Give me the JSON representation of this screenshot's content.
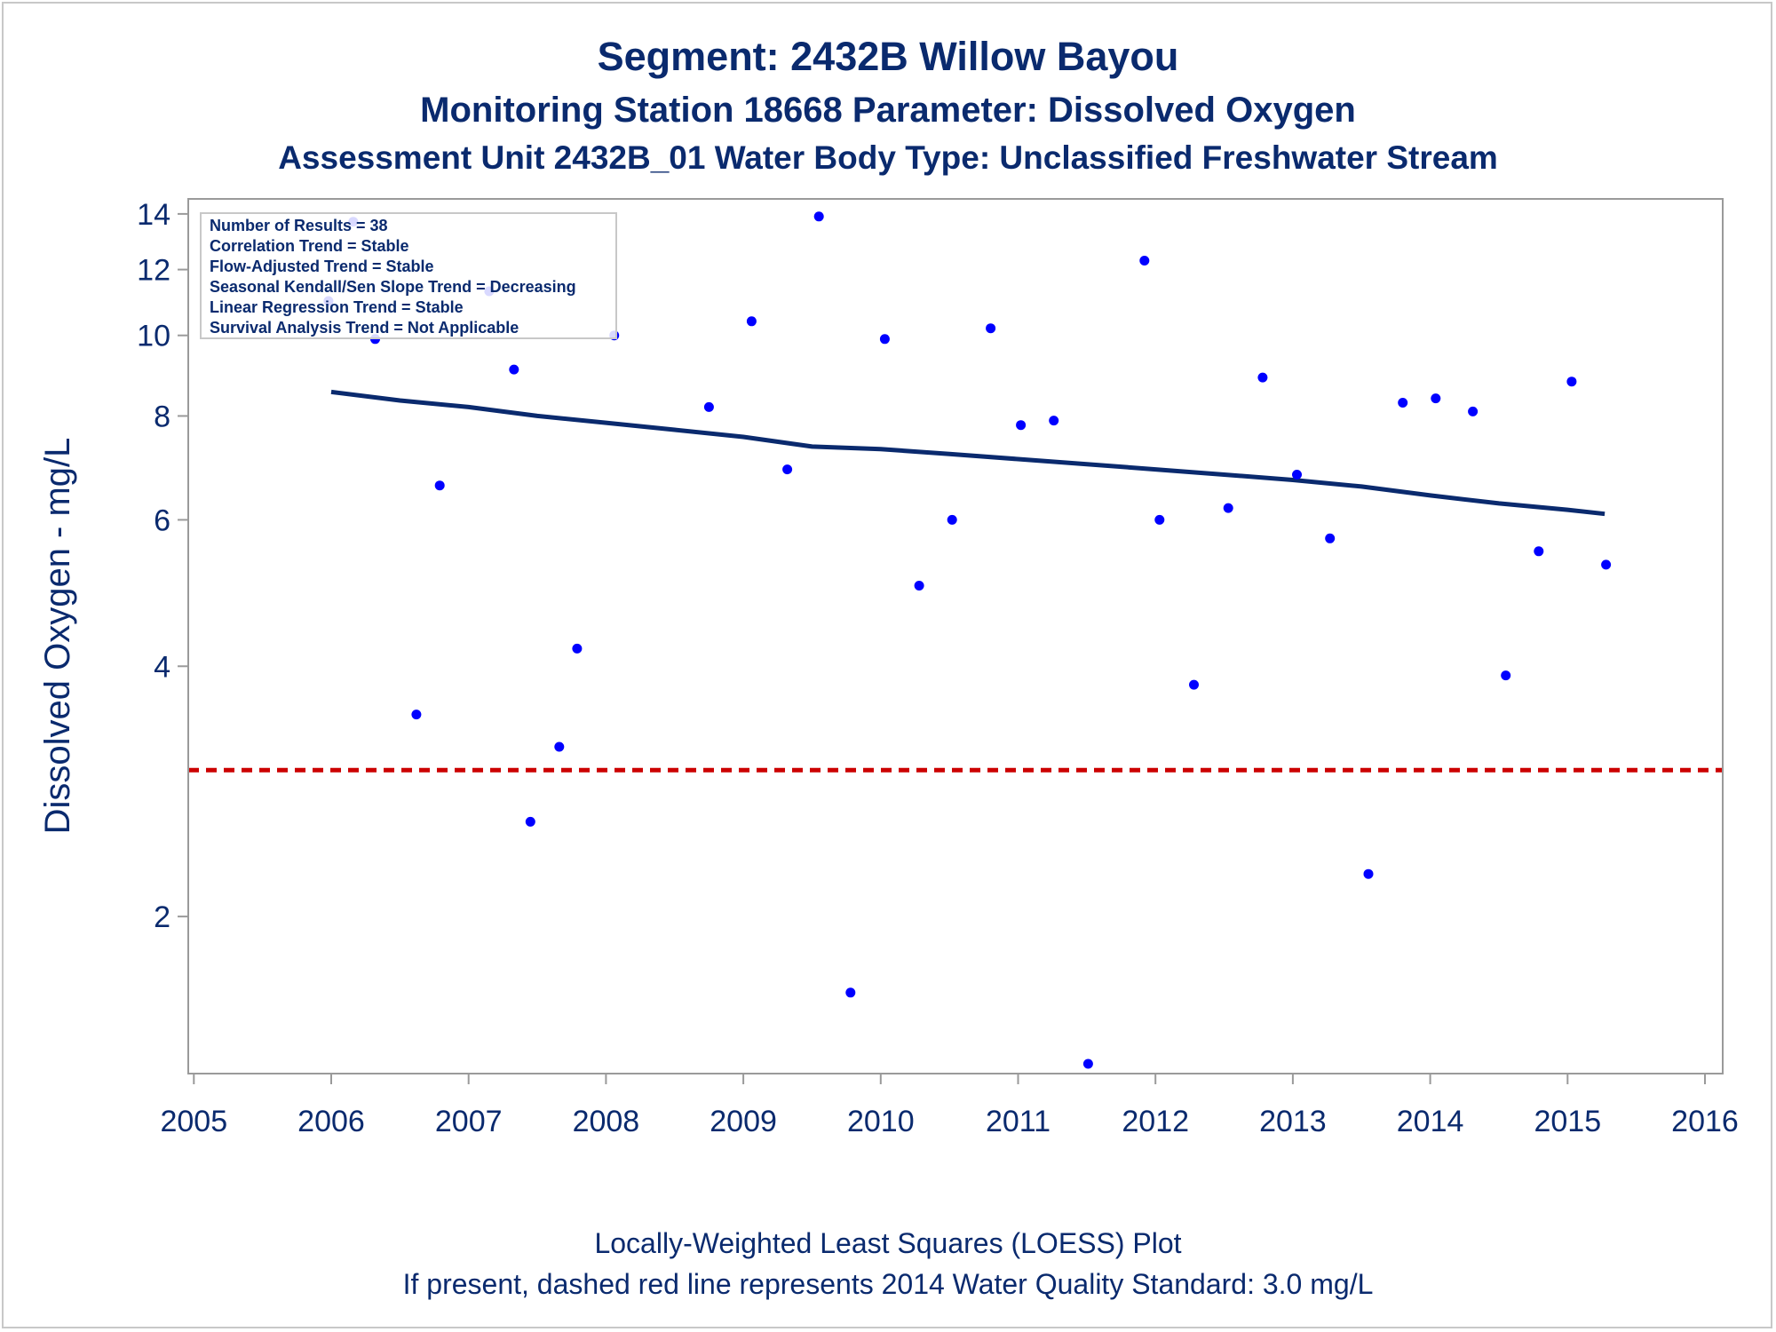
{
  "titles": {
    "line1": "Segment: 2432B  Willow Bayou",
    "line2": "Monitoring Station 18668 Parameter: Dissolved Oxygen",
    "line3": "Assessment Unit 2432B_01   Water Body Type: Unclassified Freshwater Stream"
  },
  "footnotes": {
    "line1": "Locally-Weighted Least Squares (LOESS) Plot",
    "line2": "If present, dashed red line represents 2014 Water Quality Standard: 3.0 mg/L"
  },
  "stats_box": [
    "Number of Results = 38",
    "Correlation Trend = Stable",
    "Flow-Adjusted Trend = Stable",
    "Seasonal Kendall/Sen Slope Trend = Decreasing",
    "Linear Regression Trend = Stable",
    "Survival Analysis Trend = Not Applicable"
  ],
  "colors": {
    "points": "#0000ff",
    "loess": "#0a2a6e",
    "standard_line": "#cc0000",
    "text": "#0a2a6e",
    "axis": "#9a9a9a"
  },
  "chart_data": {
    "type": "scatter",
    "ylabel": "Dissolved Oxygen - mg/L",
    "y_scale": "log",
    "xlim": [
      2005,
      2016.1
    ],
    "ylim": [
      1.33,
      14.1
    ],
    "x_ticks": [
      2005,
      2006,
      2007,
      2008,
      2009,
      2010,
      2011,
      2012,
      2013,
      2014,
      2015,
      2016
    ],
    "y_ticks": [
      2,
      4,
      6,
      8,
      10,
      12,
      14
    ],
    "points": [
      [
        2005.98,
        11.0
      ],
      [
        2006.16,
        13.7
      ],
      [
        2006.32,
        9.9
      ],
      [
        2006.62,
        3.5
      ],
      [
        2006.79,
        6.6
      ],
      [
        2007.15,
        11.3
      ],
      [
        2007.33,
        9.1
      ],
      [
        2007.45,
        2.6
      ],
      [
        2007.66,
        3.2
      ],
      [
        2007.79,
        4.2
      ],
      [
        2008.06,
        10.0
      ],
      [
        2008.75,
        8.2
      ],
      [
        2009.06,
        10.4
      ],
      [
        2009.32,
        6.9
      ],
      [
        2009.55,
        13.9
      ],
      [
        2009.78,
        1.62
      ],
      [
        2010.03,
        9.9
      ],
      [
        2010.28,
        5.0
      ],
      [
        2010.52,
        6.0
      ],
      [
        2010.8,
        10.2
      ],
      [
        2011.02,
        7.8
      ],
      [
        2011.26,
        7.9
      ],
      [
        2011.51,
        1.33
      ],
      [
        2011.92,
        12.3
      ],
      [
        2012.03,
        6.0
      ],
      [
        2012.28,
        3.8
      ],
      [
        2012.53,
        6.2
      ],
      [
        2012.78,
        8.9
      ],
      [
        2013.03,
        6.8
      ],
      [
        2013.27,
        5.7
      ],
      [
        2013.55,
        2.25
      ],
      [
        2013.8,
        8.3
      ],
      [
        2014.04,
        8.4
      ],
      [
        2014.31,
        8.1
      ],
      [
        2014.55,
        3.9
      ],
      [
        2014.79,
        5.5
      ],
      [
        2015.03,
        8.8
      ],
      [
        2015.28,
        5.3
      ]
    ],
    "loess": [
      [
        2006.0,
        8.55
      ],
      [
        2006.5,
        8.35
      ],
      [
        2007.0,
        8.2
      ],
      [
        2007.5,
        8.0
      ],
      [
        2008.0,
        7.85
      ],
      [
        2008.5,
        7.7
      ],
      [
        2009.0,
        7.55
      ],
      [
        2009.5,
        7.35
      ],
      [
        2010.0,
        7.3
      ],
      [
        2010.5,
        7.2
      ],
      [
        2011.0,
        7.1
      ],
      [
        2011.5,
        7.0
      ],
      [
        2012.0,
        6.9
      ],
      [
        2012.5,
        6.8
      ],
      [
        2013.0,
        6.7
      ],
      [
        2013.5,
        6.58
      ],
      [
        2014.0,
        6.42
      ],
      [
        2014.5,
        6.28
      ],
      [
        2015.0,
        6.17
      ],
      [
        2015.27,
        6.1
      ]
    ],
    "standard_value": 3.0
  }
}
